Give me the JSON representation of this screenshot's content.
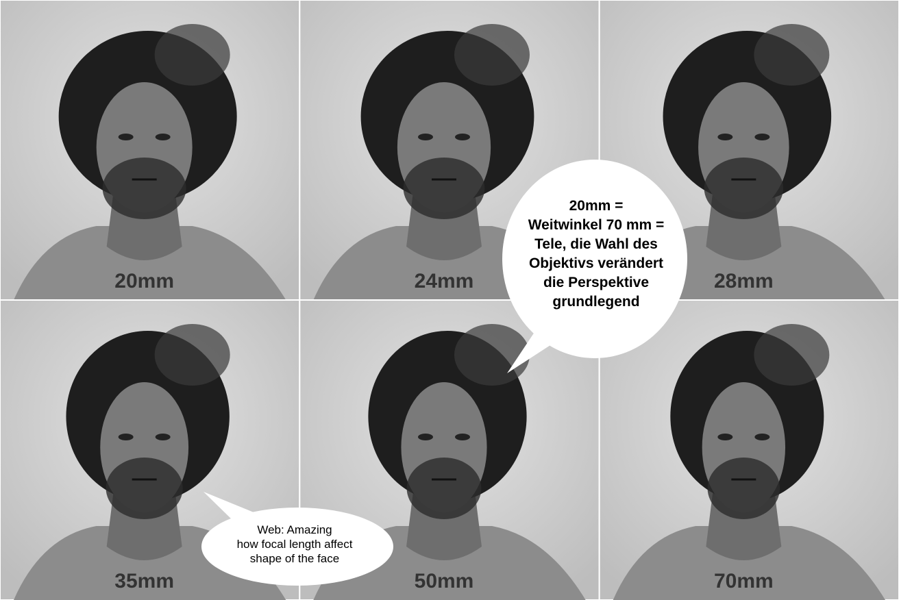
{
  "panels": [
    {
      "label": "20mm"
    },
    {
      "label": "24mm"
    },
    {
      "label": "28mm"
    },
    {
      "label": "35mm"
    },
    {
      "label": "50mm"
    },
    {
      "label": "70mm"
    }
  ],
  "speech_bubbles": [
    {
      "lines": [
        "20mm =",
        "Weitwinkel 70 mm =",
        "Tele, die Wahl des",
        "Objektivs verändert",
        "die Perspektive",
        "grundlegend"
      ]
    },
    {
      "lines": [
        "Web: Amazing",
        "how focal length affect",
        "shape of the face"
      ]
    }
  ]
}
